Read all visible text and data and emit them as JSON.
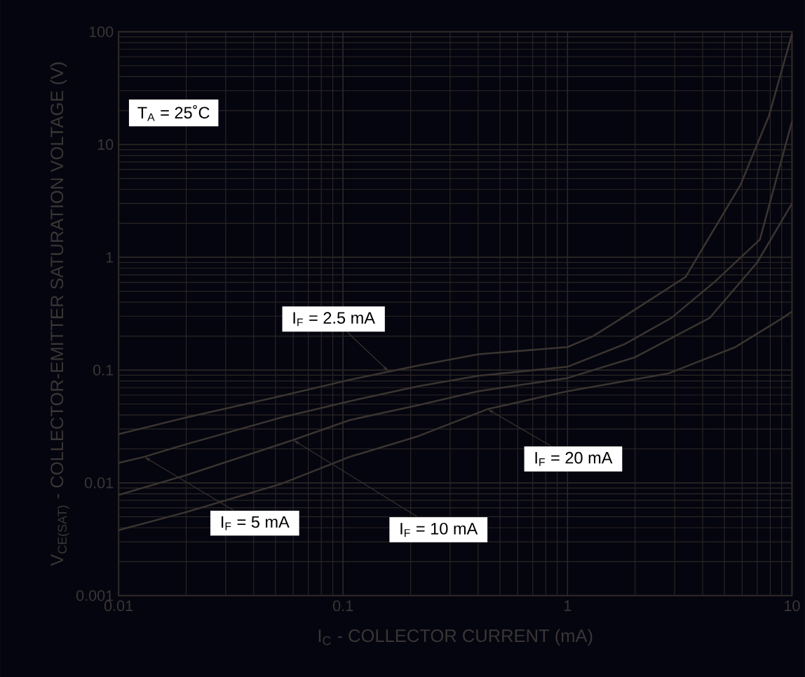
{
  "chart_data": {
    "type": "line",
    "xlabel": "I$_{C}$ - COLLECTOR CURRENT (mA)",
    "ylabel": "V$_{CE(SAT)}$ - COLLECTOR-EMITTER SATURATION VOLTAGE (V)",
    "annotations": [
      "T$_{A}$ = 25˚C"
    ],
    "log": "xy",
    "grid": true,
    "xlim": [
      0.01,
      10
    ],
    "ylim": [
      0.001,
      100
    ],
    "xticks": [
      0.01,
      0.1,
      1,
      10
    ],
    "yticks": [
      0.001,
      0.01,
      0.1,
      1,
      10,
      100
    ],
    "series": [
      {
        "name": "I$_{F}$ = 2.5 mA",
        "color": "#3a3430",
        "x": [
          0.01,
          0.02,
          0.053,
          0.107,
          0.16,
          0.217,
          0.4,
          1,
          1.3,
          1.75,
          3.36,
          5.9,
          7.9,
          10
        ],
        "values": [
          0.027,
          0.038,
          0.059,
          0.082,
          0.097,
          0.11,
          0.138,
          0.16,
          0.2,
          0.29,
          0.67,
          4.4,
          18,
          95
        ]
      },
      {
        "name": "I$_{F}$ = 5 mA",
        "color": "#3a3430",
        "x": [
          0.01,
          0.013,
          0.02,
          0.053,
          0.107,
          0.217,
          0.4,
          1,
          1.8,
          2.9,
          4.5,
          7.2,
          10
        ],
        "values": [
          0.015,
          0.017,
          0.022,
          0.038,
          0.053,
          0.072,
          0.089,
          0.107,
          0.17,
          0.29,
          0.6,
          1.44,
          16
        ]
      },
      {
        "name": "I$_{F}$ = 10 mA",
        "color": "#3a3430",
        "x": [
          0.01,
          0.02,
          0.06,
          0.107,
          0.217,
          0.4,
          1,
          2,
          4.3,
          7,
          10
        ],
        "values": [
          0.0078,
          0.0117,
          0.024,
          0.036,
          0.049,
          0.065,
          0.085,
          0.13,
          0.29,
          0.9,
          3.0
        ]
      },
      {
        "name": "I$_{F}$ = 20 mA",
        "color": "#3a3430",
        "x": [
          0.01,
          0.02,
          0.053,
          0.107,
          0.217,
          0.44,
          1,
          2.8,
          5.6,
          9.1,
          10
        ],
        "values": [
          0.0038,
          0.0055,
          0.0098,
          0.017,
          0.026,
          0.045,
          0.065,
          0.093,
          0.16,
          0.29,
          0.33
        ]
      }
    ]
  }
}
